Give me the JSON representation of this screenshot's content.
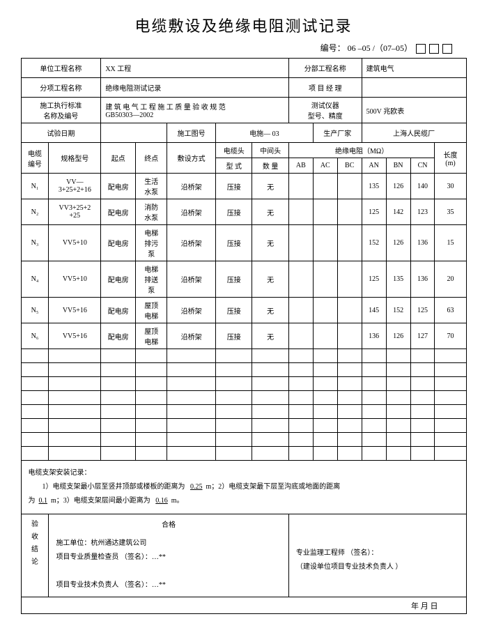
{
  "title": "电缆敷设及绝缘电阻测试记录",
  "docnum_label": "编号：",
  "docnum_value": "06 –05 /（07–05）",
  "header": {
    "unit_project_label": "单位工程名称",
    "unit_project_value": "XX 工程",
    "sub_project_label": "分部工程名称",
    "sub_project_value": "建筑电气",
    "item_project_label": "分项工程名称",
    "item_project_value": "绝缘电阻测试记录",
    "pm_label": "项 目 经 理",
    "pm_value": "",
    "std_label": "施工执行标准\n名称及编号",
    "std_value": "建 筑 电 气 工 程 施 工 质 量 验 收 规 范\nGB50303—2002",
    "instr_label": "测试仪器\n型号、精度",
    "instr_value": "500V 兆欧表",
    "test_date_label": "试验日期",
    "test_date_value": "",
    "drawing_label": "施工图号",
    "drawing_value": "电施— 03",
    "mfr_label": "生产厂家",
    "mfr_value": "上海人民缆厂"
  },
  "columns": {
    "cable_no": "电缆\n编号",
    "spec": "规格型号",
    "start": "起点",
    "end": "终点",
    "method": "敷设方式",
    "cable_head": "电缆头",
    "mid_head": "中间头",
    "type": "型 式",
    "qty": "数 量",
    "ins_res": "绝缘电阻（MΩ）",
    "ab": "AB",
    "ac": "AC",
    "bc": "BC",
    "an": "AN",
    "bn": "BN",
    "cn": "CN",
    "length": "长度\n(m)"
  },
  "rows": [
    {
      "no": "N₁",
      "spec": "VV—\n3+25+2+16",
      "start": "配电房",
      "end": "生活\n水泵",
      "method": "沿桥架",
      "type": "压接",
      "qty": "无",
      "ab": "",
      "ac": "",
      "bc": "",
      "an": "135",
      "bn": "126",
      "cn": "140",
      "len": "30"
    },
    {
      "no": "N₂",
      "spec": "VV3+25+2\n+25",
      "start": "配电房",
      "end": "消防\n水泵",
      "method": "沿桥架",
      "type": "压接",
      "qty": "无",
      "ab": "",
      "ac": "",
      "bc": "",
      "an": "125",
      "bn": "142",
      "cn": "123",
      "len": "35"
    },
    {
      "no": "N₃",
      "spec": "VV5+10",
      "start": "配电房",
      "end": "电梯\n排污\n泵",
      "method": "沿桥架",
      "type": "压接",
      "qty": "无",
      "ab": "",
      "ac": "",
      "bc": "",
      "an": "152",
      "bn": "126",
      "cn": "136",
      "len": "15"
    },
    {
      "no": "N₄",
      "spec": "VV5+10",
      "start": "配电房",
      "end": "电梯\n排送\n泵",
      "method": "沿桥架",
      "type": "压接",
      "qty": "无",
      "ab": "",
      "ac": "",
      "bc": "",
      "an": "125",
      "bn": "135",
      "cn": "136",
      "len": "20"
    },
    {
      "no": "N₅",
      "spec": "VV5+16",
      "start": "配电房",
      "end": "屋顶\n电梯",
      "method": "沿桥架",
      "type": "压接",
      "qty": "无",
      "ab": "",
      "ac": "",
      "bc": "",
      "an": "145",
      "bn": "152",
      "cn": "125",
      "len": "63"
    },
    {
      "no": "N₆",
      "spec": "VV5+16",
      "start": "配电房",
      "end": "屋顶\n电梯",
      "method": "沿桥架",
      "type": "压接",
      "qty": "无",
      "ab": "",
      "ac": "",
      "bc": "",
      "an": "136",
      "bn": "126",
      "cn": "127",
      "len": "70"
    }
  ],
  "empty_rows": 8,
  "notes": {
    "heading": "电缆支架安装记录：",
    "line1a": "1）电缆支架最小层至竖井顶部或楼板的距离为",
    "v1": "0.25",
    "line1b": "m；2）电缆支架最下层至沟底或地面的距离",
    "line2a": "为",
    "v2": "0.1",
    "line2b": "m；3）电缆支架层间最小距离为",
    "v3": "0.16",
    "line2c": "m。"
  },
  "footer": {
    "vlabel": "验\n收\n结\n论",
    "pass": "合格",
    "l1": "施工单位：杭州通达建筑公司",
    "l2": "项目专业质量检查员 （签名）：…**",
    "l3": "项目专业技术负责人 （签名）：…**",
    "r1": "专业监理工程师 （签名）：",
    "r2": "（建设单位项目专业技术负责人    ）",
    "date": "年       月      日"
  }
}
